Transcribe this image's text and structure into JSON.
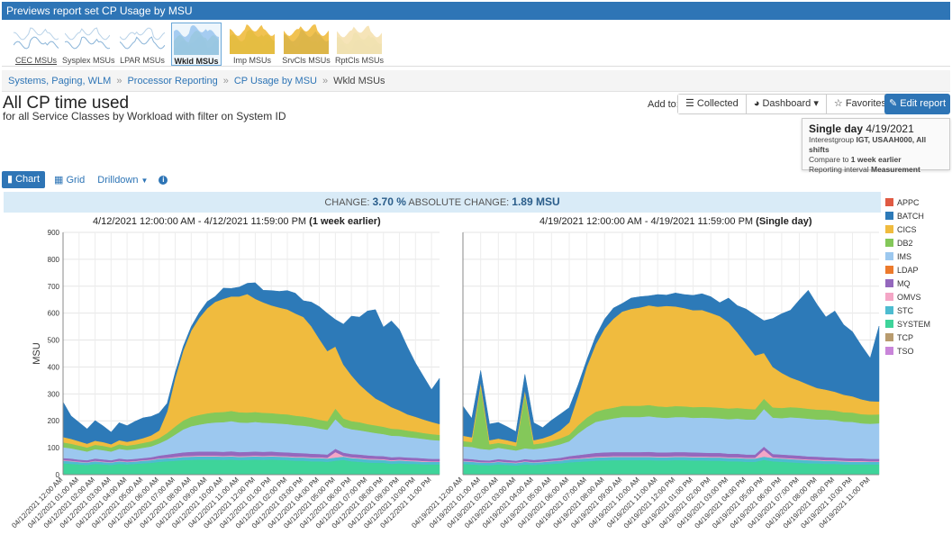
{
  "topbar": {
    "title": "Previews report set CP Usage by MSU"
  },
  "thumbnails": [
    {
      "label": "CEC MSUs",
      "active": false,
      "underlined": true,
      "colors": [
        "#8ab4d8",
        "#b8d2e8"
      ]
    },
    {
      "label": "Sysplex MSUs",
      "active": false,
      "underlined": false,
      "colors": [
        "#8ab4d8",
        "#b8d2e8"
      ]
    },
    {
      "label": "LPAR MSUs",
      "active": false,
      "underlined": false,
      "colors": [
        "#8ab4d8",
        "#b8d2e8"
      ]
    },
    {
      "label": "Wkld MSUs",
      "active": true,
      "underlined": false,
      "colors": [
        "#f0bb3e",
        "#2d7ab8",
        "#84c85a",
        "#9cc8ef"
      ]
    },
    {
      "label": "Imp MSUs",
      "active": false,
      "underlined": false,
      "colors": [
        "#e66b4f",
        "#9cc8ef",
        "#84c85a",
        "#f0bb3e"
      ]
    },
    {
      "label": "SrvCls MSUs",
      "active": false,
      "underlined": false,
      "colors": [
        "#e06a2a",
        "#84c85a",
        "#2d7ab8",
        "#f0bb3e"
      ]
    },
    {
      "label": "RptCls MSUs",
      "active": false,
      "underlined": false,
      "colors": [
        "#f0c9a0",
        "#bfe0b4",
        "#f5e1b0"
      ]
    }
  ],
  "breadcrumb": {
    "items": [
      "Systems, Paging, WLM",
      "Processor Reporting",
      "CP Usage by MSU"
    ],
    "current": "Wkld MSUs"
  },
  "page": {
    "title": "All CP time used",
    "subtitle": "for all Service Classes by Workload with filter on System ID"
  },
  "toolbar": {
    "add_to_label": "Add to:",
    "collected_label": "Collected",
    "dashboard_label": "Dashboard",
    "favorites_label": "Favorites",
    "edit_label": "Edit report"
  },
  "infobox": {
    "mode": "Single day",
    "date": "4/19/2021",
    "line1_prefix": "Interestgroup ",
    "line1_bold": "IGT, USAAH000, All shifts",
    "line2_prefix": "Compare to ",
    "line2_bold": "1 week earlier",
    "line3_prefix": "Reporting interval ",
    "line3_bold": "Measurement"
  },
  "tabs": {
    "chart": "Chart",
    "grid": "Grid",
    "drilldown": "Drilldown"
  },
  "change": {
    "label": "CHANGE:",
    "value": "3.70 %",
    "abs_label": "ABSOLUTE CHANGE:",
    "abs_value": "1.89 MSU"
  },
  "colors": {
    "APPC": "#e05a43",
    "BATCH": "#2d7ab8",
    "CICS": "#f0bb3e",
    "DB2": "#84c85a",
    "IMS": "#9cc8ef",
    "LDAP": "#ec7a2c",
    "MQ": "#9468bd",
    "OMVS": "#f4a6c6",
    "STC": "#4dbcd0",
    "SYSTEM": "#3ed49a",
    "TCP": "#b89b6e",
    "TSO": "#c985d9"
  },
  "chart_data": [
    {
      "type": "area",
      "stacked": true,
      "title_range": "4/12/2021 12:00:00 AM - 4/12/2021 11:59:00 PM",
      "title_suffix": "(1 week earlier)",
      "ylabel": "MSU",
      "ylim": [
        0,
        900
      ],
      "yticks": [
        0,
        100,
        200,
        300,
        400,
        500,
        600,
        700,
        800,
        900
      ],
      "legend": "right",
      "x_start": "04/12/2021 12:00 AM",
      "x_step_minutes": 30,
      "x_ticks": [
        "04/12/2021 12:00 AM",
        "04/12/2021 01:00 AM",
        "04/12/2021 02:00 AM",
        "04/12/2021 03:00 AM",
        "04/12/2021 04:00 AM",
        "04/12/2021 05:00 AM",
        "04/12/2021 06:00 AM",
        "04/12/2021 07:00 AM",
        "04/12/2021 08:00 AM",
        "04/12/2021 09:00 AM",
        "04/12/2021 10:00 AM",
        "04/12/2021 11:00 AM",
        "04/12/2021 12:00 PM",
        "04/12/2021 01:00 PM",
        "04/12/2021 02:00 PM",
        "04/12/2021 03:00 PM",
        "04/12/2021 04:00 PM",
        "04/12/2021 05:00 PM",
        "04/12/2021 06:00 PM",
        "04/12/2021 07:00 PM",
        "04/12/2021 08:00 PM",
        "04/12/2021 09:00 PM",
        "04/12/2021 10:00 PM",
        "04/12/2021 11:00 PM"
      ],
      "series": [
        {
          "name": "SYSTEM",
          "values": [
            42,
            40,
            38,
            36,
            40,
            38,
            36,
            40,
            38,
            40,
            42,
            44,
            48,
            50,
            52,
            54,
            55,
            56,
            56,
            56,
            55,
            56,
            54,
            55,
            56,
            55,
            56,
            55,
            54,
            52,
            52,
            50,
            50,
            48,
            52,
            55,
            50,
            48,
            45,
            44,
            44,
            40,
            42,
            40,
            40,
            38,
            38,
            38
          ]
        },
        {
          "name": "STC",
          "values": [
            10,
            10,
            9,
            9,
            10,
            9,
            9,
            10,
            9,
            9,
            10,
            10,
            11,
            11,
            11,
            12,
            12,
            12,
            12,
            12,
            12,
            12,
            12,
            12,
            12,
            12,
            12,
            12,
            12,
            12,
            12,
            12,
            12,
            12,
            12,
            12,
            12,
            12,
            12,
            12,
            11,
            11,
            11,
            11,
            10,
            10,
            10,
            10
          ]
        },
        {
          "name": "OMVS",
          "values": [
            2,
            2,
            2,
            2,
            2,
            2,
            2,
            2,
            2,
            2,
            2,
            2,
            2,
            2,
            3,
            3,
            3,
            3,
            3,
            3,
            3,
            3,
            3,
            3,
            3,
            3,
            3,
            3,
            3,
            3,
            3,
            3,
            3,
            3,
            20,
            3,
            3,
            3,
            3,
            3,
            3,
            3,
            3,
            3,
            3,
            3,
            2,
            2
          ]
        },
        {
          "name": "MQ",
          "values": [
            8,
            8,
            7,
            7,
            8,
            8,
            7,
            8,
            8,
            8,
            8,
            9,
            10,
            12,
            13,
            14,
            15,
            15,
            15,
            15,
            15,
            16,
            15,
            15,
            15,
            15,
            15,
            14,
            14,
            14,
            13,
            13,
            12,
            12,
            12,
            12,
            12,
            12,
            12,
            11,
            11,
            11,
            10,
            10,
            10,
            10,
            9,
            9
          ]
        },
        {
          "name": "IMS",
          "values": [
            40,
            38,
            36,
            32,
            35,
            34,
            32,
            36,
            35,
            36,
            38,
            40,
            45,
            55,
            70,
            85,
            95,
            100,
            105,
            108,
            110,
            112,
            110,
            108,
            110,
            108,
            106,
            106,
            105,
            103,
            102,
            100,
            95,
            92,
            110,
            95,
            92,
            90,
            88,
            85,
            82,
            80,
            78,
            76,
            74,
            72,
            70,
            68
          ]
        },
        {
          "name": "DB2",
          "values": [
            18,
            17,
            16,
            15,
            16,
            16,
            15,
            17,
            16,
            17,
            18,
            19,
            20,
            25,
            30,
            33,
            35,
            36,
            37,
            38,
            38,
            38,
            38,
            38,
            37,
            37,
            37,
            36,
            36,
            35,
            34,
            33,
            32,
            32,
            40,
            32,
            30,
            30,
            28,
            28,
            27,
            26,
            25,
            24,
            23,
            22,
            22,
            21
          ]
        },
        {
          "name": "CICS",
          "values": [
            20,
            18,
            16,
            14,
            15,
            14,
            12,
            15,
            14,
            16,
            18,
            22,
            28,
            80,
            180,
            260,
            320,
            360,
            390,
            410,
            420,
            425,
            430,
            440,
            420,
            410,
            400,
            395,
            390,
            380,
            370,
            340,
            300,
            260,
            230,
            200,
            170,
            140,
            120,
            100,
            90,
            80,
            70,
            60,
            55,
            50,
            45,
            40
          ]
        },
        {
          "name": "BATCH",
          "values": [
            130,
            85,
            70,
            55,
            75,
            60,
            45,
            65,
            60,
            70,
            75,
            70,
            65,
            30,
            20,
            15,
            15,
            20,
            25,
            20,
            40,
            30,
            35,
            40,
            60,
            45,
            55,
            60,
            70,
            75,
            60,
            90,
            120,
            140,
            100,
            150,
            220,
            250,
            300,
            330,
            280,
            320,
            300,
            250,
            200,
            160,
            120,
            170
          ]
        }
      ]
    },
    {
      "type": "area",
      "stacked": true,
      "title_range": "4/19/2021 12:00:00 AM - 4/19/2021 11:59:00 PM",
      "title_suffix": "(Single day)",
      "ylim": [
        0,
        900
      ],
      "legend": "right",
      "x_start": "04/19/2021 12:00 AM",
      "x_step_minutes": 30,
      "x_ticks": [
        "04/19/2021 12:00 AM",
        "04/19/2021 01:00 AM",
        "04/19/2021 02:00 AM",
        "04/19/2021 03:00 AM",
        "04/19/2021 04:00 AM",
        "04/19/2021 05:00 AM",
        "04/19/2021 06:00 AM",
        "04/19/2021 07:00 AM",
        "04/19/2021 08:00 AM",
        "04/19/2021 09:00 AM",
        "04/19/2021 10:00 AM",
        "04/19/2021 11:00 AM",
        "04/19/2021 12:00 PM",
        "04/19/2021 01:00 PM",
        "04/19/2021 02:00 PM",
        "04/19/2021 03:00 PM",
        "04/19/2021 04:00 PM",
        "04/19/2021 05:00 PM",
        "04/19/2021 06:00 PM",
        "04/19/2021 07:00 PM",
        "04/19/2021 08:00 PM",
        "04/19/2021 09:00 PM",
        "04/19/2021 10:00 PM",
        "04/19/2021 11:00 PM"
      ],
      "series": [
        {
          "name": "SYSTEM",
          "values": [
            40,
            38,
            36,
            35,
            38,
            36,
            34,
            38,
            36,
            38,
            40,
            42,
            46,
            48,
            50,
            52,
            53,
            54,
            54,
            54,
            54,
            54,
            53,
            53,
            54,
            54,
            53,
            53,
            52,
            52,
            50,
            50,
            48,
            48,
            55,
            50,
            48,
            46,
            44,
            42,
            42,
            40,
            40,
            38,
            38,
            38,
            38,
            38
          ]
        },
        {
          "name": "STC",
          "values": [
            10,
            10,
            9,
            9,
            10,
            9,
            9,
            10,
            9,
            9,
            10,
            10,
            11,
            11,
            11,
            12,
            12,
            12,
            12,
            12,
            12,
            12,
            12,
            12,
            12,
            12,
            12,
            12,
            12,
            12,
            12,
            12,
            12,
            12,
            12,
            12,
            12,
            12,
            12,
            12,
            11,
            11,
            11,
            11,
            10,
            10,
            10,
            10
          ]
        },
        {
          "name": "OMVS",
          "values": [
            2,
            2,
            2,
            2,
            2,
            2,
            2,
            2,
            2,
            2,
            2,
            2,
            2,
            2,
            3,
            3,
            3,
            3,
            3,
            3,
            3,
            3,
            3,
            3,
            3,
            3,
            3,
            3,
            3,
            3,
            3,
            3,
            3,
            3,
            25,
            3,
            3,
            3,
            3,
            3,
            3,
            3,
            3,
            3,
            3,
            3,
            2,
            2
          ]
        },
        {
          "name": "MQ",
          "values": [
            8,
            8,
            7,
            7,
            8,
            8,
            7,
            8,
            8,
            8,
            8,
            9,
            10,
            12,
            13,
            14,
            15,
            15,
            15,
            15,
            15,
            16,
            15,
            15,
            15,
            15,
            15,
            14,
            14,
            14,
            13,
            13,
            12,
            12,
            12,
            12,
            12,
            12,
            12,
            11,
            11,
            11,
            10,
            10,
            10,
            10,
            9,
            9
          ]
        },
        {
          "name": "IMS",
          "values": [
            45,
            45,
            42,
            40,
            42,
            40,
            38,
            40,
            40,
            42,
            45,
            50,
            55,
            80,
            100,
            115,
            120,
            125,
            130,
            130,
            130,
            132,
            130,
            128,
            130,
            130,
            128,
            130,
            130,
            128,
            128,
            130,
            130,
            130,
            140,
            135,
            135,
            140,
            140,
            140,
            138,
            140,
            138,
            135,
            135,
            130,
            130,
            132
          ]
        },
        {
          "name": "DB2",
          "values": [
            20,
            18,
            230,
            20,
            18,
            18,
            16,
            200,
            18,
            18,
            20,
            22,
            25,
            30,
            35,
            38,
            40,
            40,
            42,
            42,
            42,
            42,
            41,
            41,
            41,
            40,
            40,
            40,
            40,
            40,
            40,
            40,
            40,
            38,
            38,
            38,
            38,
            38,
            38,
            37,
            37,
            36,
            36,
            35,
            35,
            34,
            34,
            33
          ]
        },
        {
          "name": "CICS",
          "values": [
            20,
            18,
            16,
            15,
            16,
            15,
            14,
            15,
            15,
            18,
            22,
            30,
            45,
            110,
            190,
            250,
            300,
            330,
            350,
            360,
            365,
            370,
            370,
            375,
            370,
            365,
            360,
            360,
            350,
            340,
            320,
            280,
            240,
            200,
            170,
            150,
            130,
            110,
            100,
            90,
            80,
            75,
            70,
            65,
            60,
            55,
            50,
            48
          ]
        },
        {
          "name": "BATCH",
          "values": [
            110,
            70,
            45,
            60,
            60,
            50,
            40,
            60,
            65,
            40,
            55,
            60,
            55,
            40,
            25,
            30,
            35,
            40,
            30,
            40,
            40,
            35,
            45,
            40,
            50,
            50,
            55,
            60,
            60,
            50,
            90,
            100,
            130,
            150,
            120,
            180,
            220,
            250,
            300,
            350,
            310,
            270,
            300,
            260,
            240,
            200,
            160,
            280
          ]
        }
      ]
    }
  ],
  "legend_items": [
    "APPC",
    "BATCH",
    "CICS",
    "DB2",
    "IMS",
    "LDAP",
    "MQ",
    "OMVS",
    "STC",
    "SYSTEM",
    "TCP",
    "TSO"
  ]
}
